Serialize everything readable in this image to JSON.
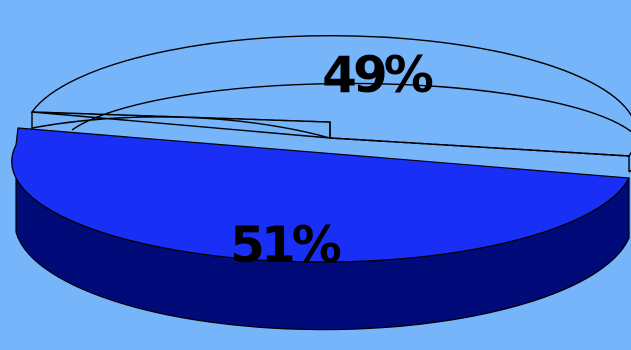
{
  "chart_data": {
    "type": "pie",
    "style": "3d-exploded",
    "slices": [
      {
        "label": "49%",
        "value": 49,
        "color": "#77b5fb",
        "outline": "#000000",
        "raised": true
      },
      {
        "label": "51%",
        "value": 51,
        "top_color": "#1a2ff5",
        "side_color": "#000a78"
      }
    ],
    "legend": false,
    "background": "#77b5fb"
  }
}
